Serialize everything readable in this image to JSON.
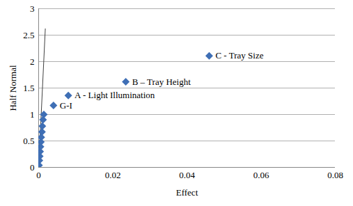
{
  "chart_data": {
    "type": "scatter",
    "x_label": "Effect",
    "y_label": "Half Normal",
    "x": [
      0.0001,
      0.0002,
      0.0003,
      0.0004,
      0.0005,
      0.0006,
      0.0007,
      0.0009,
      0.001,
      0.0012,
      0.0014,
      0.004,
      0.008,
      0.0235,
      0.046
    ],
    "values": [
      0.04,
      0.13,
      0.21,
      0.3,
      0.39,
      0.48,
      0.57,
      0.67,
      0.78,
      0.9,
      1.0,
      1.17,
      1.36,
      1.62,
      2.11
    ],
    "point_labels": [
      null,
      null,
      null,
      null,
      null,
      null,
      null,
      null,
      null,
      null,
      null,
      "G-I",
      "A - Light Illumination",
      "B – Tray Height",
      "C - Tray Size"
    ],
    "reference_line": {
      "x": [
        0,
        0.0018
      ],
      "y": [
        0,
        2.62
      ]
    },
    "color": "#3f6fb5",
    "marker": "diamond",
    "grid": true,
    "xlim": [
      0,
      0.08
    ],
    "xticks": [
      0,
      0.02,
      0.04,
      0.06,
      0.08
    ],
    "ylim": [
      0,
      3
    ],
    "yticks": [
      0,
      0.5,
      1,
      1.5,
      2,
      2.5,
      3
    ]
  }
}
